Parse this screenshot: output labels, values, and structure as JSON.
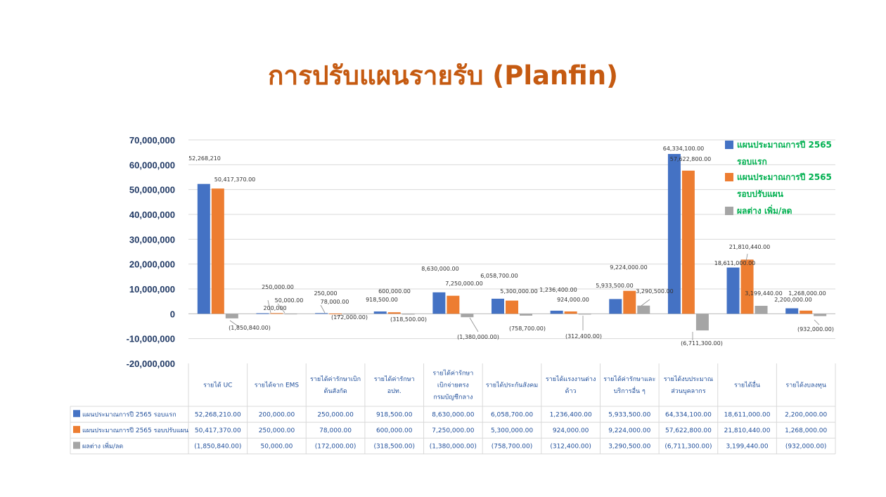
{
  "slide": {
    "title": "การปรับแผนรายรับ (Planfin)"
  },
  "chart_data": {
    "type": "bar",
    "ylim": [
      -20000000,
      70000000
    ],
    "yticks": [
      "70,000,000",
      "60,000,000",
      "50,000,000",
      "40,000,000",
      "30,000,000",
      "20,000,000",
      "10,000,000",
      "0",
      "-10,000,000",
      "-20,000,000"
    ],
    "ytick_values": [
      70000000,
      60000000,
      50000000,
      40000000,
      30000000,
      20000000,
      10000000,
      0,
      -10000000,
      -20000000
    ],
    "grid": true,
    "legend_position": "top-right",
    "categories": [
      [
        "รายได้ UC"
      ],
      [
        "รายได้จาก  EMS"
      ],
      [
        "รายได้ค่ารักษาเบิก",
        "ต้นสังกัด"
      ],
      [
        "รายได้ค่ารักษา",
        "อปท."
      ],
      [
        "รายได้ค่ารักษา",
        "เบิกจ่ายตรง",
        "กรมบัญชีกลาง"
      ],
      [
        "รายได้ประกันสังคม"
      ],
      [
        "รายได้แรงงานต่าง",
        "ด้าว"
      ],
      [
        "รายได้ค่ารักษาและ",
        "บริการอื่น ๆ"
      ],
      [
        "รายได้งบประมาณ",
        "ส่วนบุคลากร"
      ],
      [
        "รายได้อื่น"
      ],
      [
        "รายได้งบลงทุน"
      ]
    ],
    "series": [
      {
        "name": "แผนประมาณการปี 2565 รอบแรก",
        "legend_lines": [
          "แผนประมาณการปี 2565",
          "รอบแรก"
        ],
        "color": "#4472c4",
        "values": [
          52268210,
          200000,
          250000,
          918500,
          8630000,
          6058700,
          1236400,
          5933500,
          64334100,
          18611000,
          2200000
        ],
        "labels": [
          "52,268,210",
          "200,000",
          "250,000",
          "918,500.00",
          "8,630,000.00",
          "6,058,700.00",
          "1,236,400.00",
          "5,933,500.00",
          "64,334,100.00",
          "18,611,000.00",
          "2,200,000.00"
        ],
        "table": [
          "52,268,210.00",
          "200,000.00",
          "250,000.00",
          "918,500.00",
          "8,630,000.00",
          "6,058,700.00",
          "1,236,400.00",
          "5,933,500.00",
          "64,334,100.00",
          "18,611,000.00",
          "2,200,000.00"
        ]
      },
      {
        "name": "แผนประมาณการปี 2565 รอบปรับแผน",
        "legend_lines": [
          "แผนประมาณการปี 2565",
          "รอบปรับแผน"
        ],
        "color": "#ed7d31",
        "values": [
          50417370,
          250000,
          78000,
          600000,
          7250000,
          5300000,
          924000,
          9224000,
          57622800,
          21810440,
          1268000
        ],
        "labels": [
          "50,417,370.00",
          "250,000.00",
          "78,000.00",
          "600,000.00",
          "7,250,000.00",
          "5,300,000.00",
          "924,000.00",
          "9,224,000.00",
          "57,622,800.00",
          "21,810,440.00",
          "1,268,000.00"
        ],
        "table": [
          "50,417,370.00",
          "250,000.00",
          "78,000.00",
          "600,000.00",
          "7,250,000.00",
          "5,300,000.00",
          "924,000.00",
          "9,224,000.00",
          "57,622,800.00",
          "21,810,440.00",
          "1,268,000.00"
        ]
      },
      {
        "name": "ผลต่าง เพิ่ม/ลด",
        "legend_lines": [
          "ผลต่าง เพิ่ม/ลด"
        ],
        "color": "#a5a5a5",
        "values": [
          -1850840,
          50000,
          -172000,
          -318500,
          -1380000,
          -758700,
          -312400,
          3290500,
          -6711300,
          3199440,
          -932000
        ],
        "labels": [
          "(1,850,840.00)",
          "50,000.00",
          "(172,000.00)",
          "(318,500.00)",
          "(1,380,000.00)",
          "(758,700.00)",
          "(312,400.00)",
          "3,290,500.00",
          "(6,711,300.00)",
          "3,199,440.00",
          "(932,000.00)"
        ],
        "table": [
          "(1,850,840.00)",
          "50,000.00",
          "(172,000.00)",
          "(318,500.00)",
          "(1,380,000.00)",
          "(758,700.00)",
          "(312,400.00)",
          "3,290,500.00",
          "(6,711,300.00)",
          "3,199,440.00",
          "(932,000.00)"
        ]
      }
    ]
  }
}
